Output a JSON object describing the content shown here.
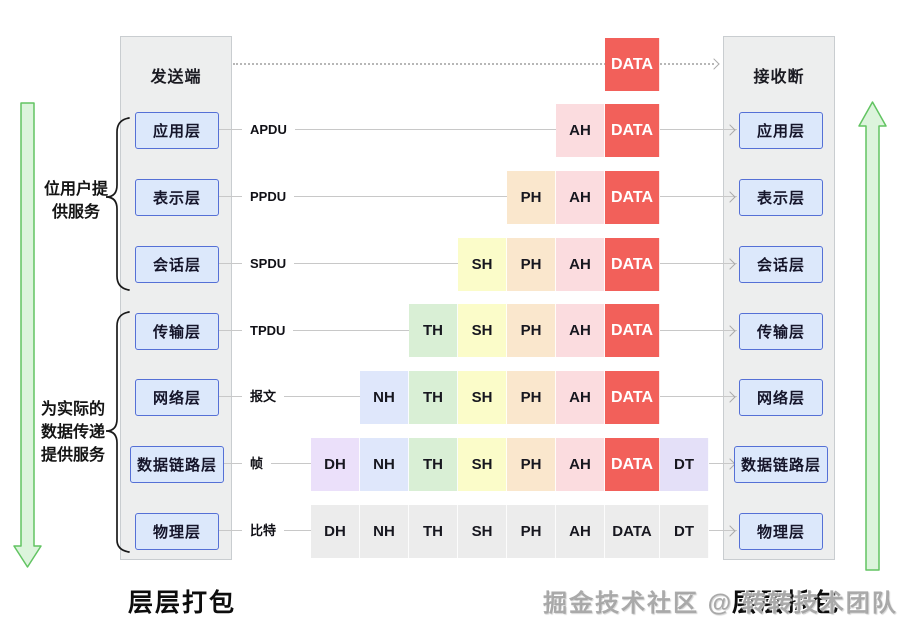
{
  "sender": {
    "title": "发送端"
  },
  "receiver": {
    "title": "接收断"
  },
  "captions": {
    "bottom_left": "层层打包",
    "bottom_right": "层层拆包"
  },
  "watermark": {
    "text": "掘金技术社区 @ 转转技术团队"
  },
  "left_annotations": [
    {
      "lines": [
        "位用户提",
        "供服务"
      ]
    },
    {
      "lines": [
        "为实际的",
        "数据传递",
        "提供服务"
      ]
    }
  ],
  "layers": [
    {
      "name": "应用层",
      "pdu": "APDU"
    },
    {
      "name": "表示层",
      "pdu": "PPDU"
    },
    {
      "name": "会话层",
      "pdu": "SPDU"
    },
    {
      "name": "传输层",
      "pdu": "TPDU"
    },
    {
      "name": "网络层",
      "pdu": "报文"
    },
    {
      "name": "数据链路层",
      "pdu": "帧"
    },
    {
      "name": "物理层",
      "pdu": "比特"
    }
  ],
  "encapsulation": {
    "rows": [
      {
        "cells": [
          "DATA"
        ],
        "gray": false
      },
      {
        "cells": [
          "AH",
          "DATA"
        ],
        "gray": false
      },
      {
        "cells": [
          "PH",
          "AH",
          "DATA"
        ],
        "gray": false
      },
      {
        "cells": [
          "SH",
          "PH",
          "AH",
          "DATA"
        ],
        "gray": false
      },
      {
        "cells": [
          "TH",
          "SH",
          "PH",
          "AH",
          "DATA"
        ],
        "gray": false
      },
      {
        "cells": [
          "NH",
          "TH",
          "SH",
          "PH",
          "AH",
          "DATA"
        ],
        "gray": false
      },
      {
        "cells": [
          "DH",
          "NH",
          "TH",
          "SH",
          "PH",
          "AH",
          "DATA",
          "DT"
        ],
        "gray": false
      },
      {
        "cells": [
          "DH",
          "NH",
          "TH",
          "SH",
          "PH",
          "AH",
          "DATA",
          "DT"
        ],
        "gray": true
      }
    ]
  },
  "colors": {
    "DH": "#ebe0fa",
    "NH": "#dfe7fb",
    "TH": "#d9efd5",
    "SH": "#fbfcc9",
    "PH": "#fae7cd",
    "AH": "#fbdcdf",
    "DATA": "#f2605a",
    "DT": "#e4e0f8",
    "gray_cell": "#ececec",
    "layer_box_fill": "#dce8fb",
    "layer_box_border": "#5570d6",
    "arrow_green_fill": "#dcf4dc",
    "arrow_green_stroke": "#62c462"
  }
}
